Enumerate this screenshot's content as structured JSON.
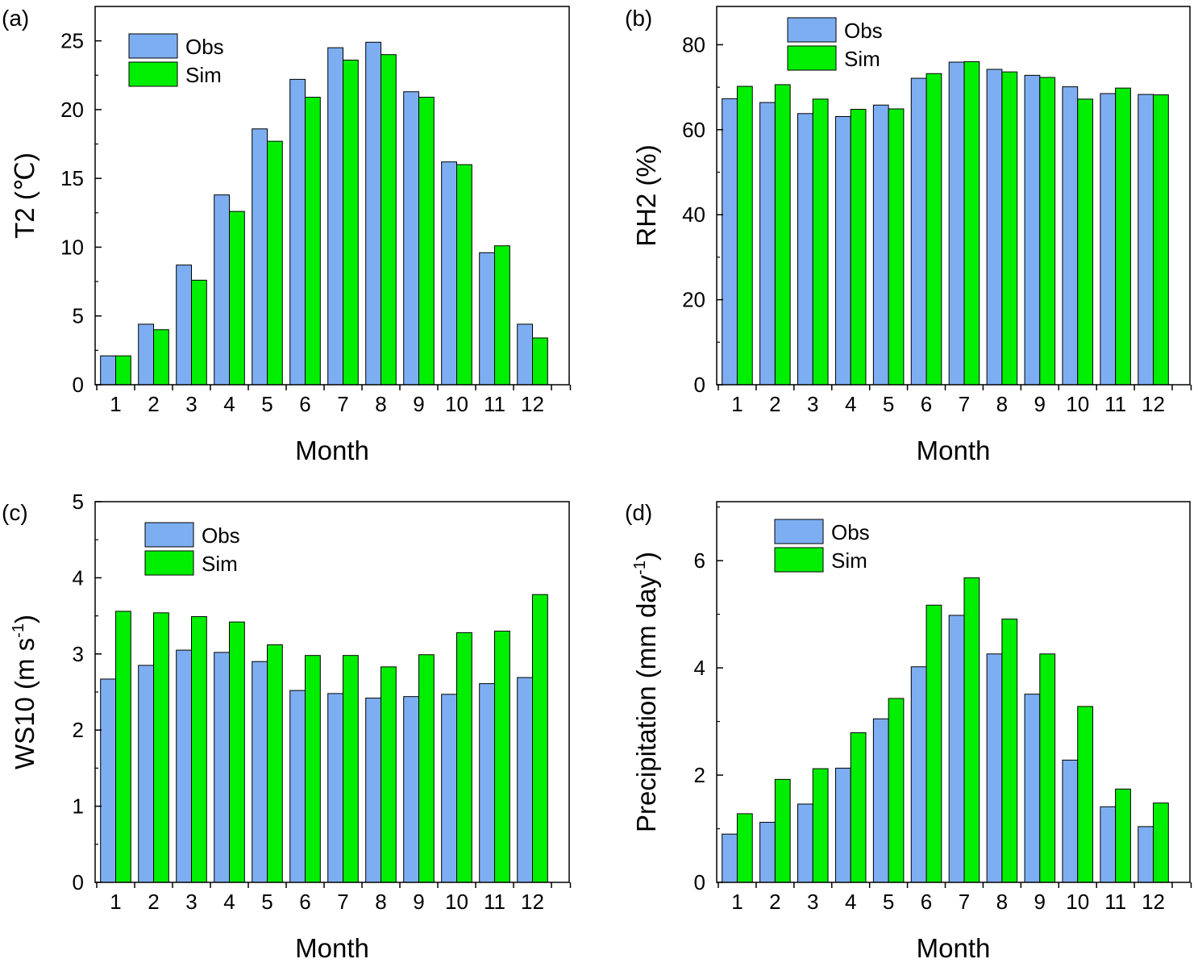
{
  "colors": {
    "obs": "#7eaef2",
    "sim": "#00ee00",
    "stroke": "#000000"
  },
  "chart_data": [
    {
      "type": "bar",
      "panel_label": "(a)",
      "xlabel": "Month",
      "ylabel": "T2 (℃)",
      "ylabel_sup": "",
      "ylabel_after": "",
      "ylim": [
        0,
        27.5
      ],
      "yticks": [
        "0",
        "5",
        "10",
        "15",
        "20",
        "25"
      ],
      "ytick_values": [
        0,
        5,
        10,
        15,
        20,
        25
      ],
      "grid": false,
      "legend_position": "top-left",
      "categories": [
        "1",
        "2",
        "3",
        "4",
        "5",
        "6",
        "7",
        "8",
        "9",
        "10",
        "11",
        "12"
      ],
      "series": [
        {
          "name": "Obs",
          "values": [
            2.1,
            4.4,
            8.7,
            13.8,
            18.6,
            22.2,
            24.5,
            24.9,
            21.3,
            16.2,
            9.6,
            4.4
          ]
        },
        {
          "name": "Sim",
          "values": [
            2.1,
            4.0,
            7.6,
            12.6,
            17.7,
            20.9,
            23.6,
            24.0,
            20.9,
            16.0,
            10.1,
            3.4
          ]
        }
      ]
    },
    {
      "type": "bar",
      "panel_label": "(b)",
      "xlabel": "Month",
      "ylabel": "RH2 (%)",
      "ylabel_sup": "",
      "ylabel_after": "",
      "ylim": [
        0,
        89
      ],
      "yticks": [
        "0",
        "20",
        "40",
        "60",
        "80"
      ],
      "ytick_values": [
        0,
        20,
        40,
        60,
        80
      ],
      "grid": false,
      "legend_position": "top-center",
      "categories": [
        "1",
        "2",
        "3",
        "4",
        "5",
        "6",
        "7",
        "8",
        "9",
        "10",
        "11",
        "12"
      ],
      "series": [
        {
          "name": "Obs",
          "values": [
            67.3,
            66.4,
            63.8,
            63.1,
            65.8,
            72.1,
            75.9,
            74.2,
            72.8,
            70.1,
            68.5,
            68.3
          ]
        },
        {
          "name": "Sim",
          "values": [
            70.2,
            70.6,
            67.2,
            64.8,
            64.9,
            73.2,
            76.0,
            73.6,
            72.3,
            67.2,
            69.8,
            68.2
          ]
        }
      ]
    },
    {
      "type": "bar",
      "panel_label": "(c)",
      "xlabel": "Month",
      "ylabel": "WS10 (m s",
      "ylabel_sup": "-1",
      "ylabel_after": ")",
      "ylim": [
        0,
        5
      ],
      "yticks": [
        "0",
        "1",
        "2",
        "3",
        "4",
        "5"
      ],
      "ytick_values": [
        0,
        1,
        2,
        3,
        4,
        5
      ],
      "grid": false,
      "legend_position": "top-left",
      "categories": [
        "1",
        "2",
        "3",
        "4",
        "5",
        "6",
        "7",
        "8",
        "9",
        "10",
        "11",
        "12"
      ],
      "series": [
        {
          "name": "Obs",
          "values": [
            2.67,
            2.85,
            3.05,
            3.02,
            2.9,
            2.52,
            2.48,
            2.42,
            2.44,
            2.47,
            2.61,
            2.69
          ]
        },
        {
          "name": "Sim",
          "values": [
            3.56,
            3.54,
            3.49,
            3.42,
            3.12,
            2.98,
            2.98,
            2.83,
            2.99,
            3.28,
            3.3,
            3.78
          ]
        }
      ]
    },
    {
      "type": "bar",
      "panel_label": "(d)",
      "xlabel": "Month",
      "ylabel": "Precipitation (mm day",
      "ylabel_sup": "-1",
      "ylabel_after": ")",
      "ylim": [
        0,
        7.1
      ],
      "yticks": [
        "0",
        "2",
        "4",
        "6"
      ],
      "ytick_values": [
        0,
        2,
        4,
        6
      ],
      "grid": false,
      "legend_position": "top-left",
      "categories": [
        "1",
        "2",
        "3",
        "4",
        "5",
        "6",
        "7",
        "8",
        "9",
        "10",
        "11",
        "12"
      ],
      "series": [
        {
          "name": "Obs",
          "values": [
            0.9,
            1.12,
            1.46,
            2.13,
            3.05,
            4.02,
            4.98,
            4.26,
            3.51,
            2.28,
            1.41,
            1.04
          ]
        },
        {
          "name": "Sim",
          "values": [
            1.28,
            1.92,
            2.12,
            2.79,
            3.43,
            5.17,
            5.68,
            4.91,
            4.26,
            3.28,
            1.74,
            1.48
          ]
        }
      ]
    }
  ]
}
